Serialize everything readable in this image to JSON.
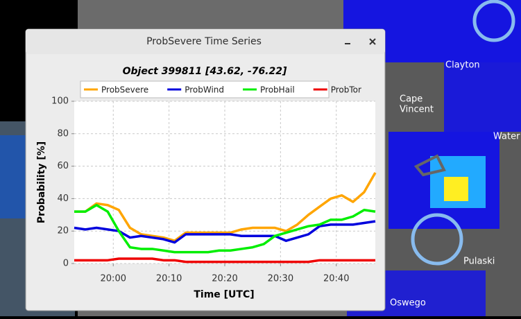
{
  "window": {
    "title": "ProbSevere Time Series"
  },
  "map": {
    "labels": [
      "Clayton",
      "Cape",
      "Vincent",
      "Water",
      "Pulaski",
      "Oswego"
    ]
  },
  "chart_data": {
    "type": "line",
    "title": "Object 399811 [43.62, -76.22]",
    "x_label": "Time [UTC]",
    "y_label": "Probability [%]",
    "x": [
      "19:53",
      "19:55",
      "19:57",
      "19:59",
      "20:01",
      "20:03",
      "20:05",
      "20:07",
      "20:09",
      "20:11",
      "20:13",
      "20:15",
      "20:17",
      "20:19",
      "20:21",
      "20:23",
      "20:25",
      "20:27",
      "20:29",
      "20:31",
      "20:33",
      "20:35",
      "20:37",
      "20:39",
      "20:41",
      "20:43",
      "20:45",
      "20:47"
    ],
    "series": [
      {
        "name": "ProbSevere",
        "color": "#ffa500",
        "values": [
          32,
          32,
          37,
          36,
          33,
          22,
          18,
          17,
          16,
          14,
          19,
          19,
          19,
          19,
          19,
          21,
          22,
          22,
          22,
          20,
          24,
          30,
          35,
          40,
          42,
          38,
          44,
          56
        ]
      },
      {
        "name": "ProbWind",
        "color": "#0000dd",
        "values": [
          22,
          21,
          22,
          21,
          20,
          16,
          17,
          16,
          15,
          13,
          18,
          18,
          18,
          18,
          18,
          17,
          17,
          17,
          17,
          14,
          16,
          18,
          23,
          24,
          24,
          24,
          25,
          26
        ]
      },
      {
        "name": "ProbHail",
        "color": "#00ee00",
        "values": [
          32,
          32,
          36,
          32,
          20,
          10,
          9,
          9,
          8,
          7,
          7,
          7,
          7,
          8,
          8,
          9,
          10,
          12,
          17,
          19,
          21,
          23,
          24,
          27,
          27,
          29,
          33,
          32
        ]
      },
      {
        "name": "ProbTor",
        "color": "#ee0000",
        "values": [
          2,
          2,
          2,
          2,
          3,
          3,
          3,
          3,
          2,
          2,
          1,
          1,
          1,
          1,
          1,
          1,
          1,
          1,
          1,
          1,
          1,
          1,
          2,
          2,
          2,
          2,
          2,
          2
        ]
      }
    ],
    "xlim": [
      "19:53",
      "20:47"
    ],
    "xticks": [
      "20:00",
      "20:10",
      "20:20",
      "20:30",
      "20:40"
    ],
    "ylim": [
      0,
      100
    ],
    "yticks": [
      0,
      20,
      40,
      60,
      80,
      100
    ],
    "grid": true,
    "legend": "top"
  }
}
